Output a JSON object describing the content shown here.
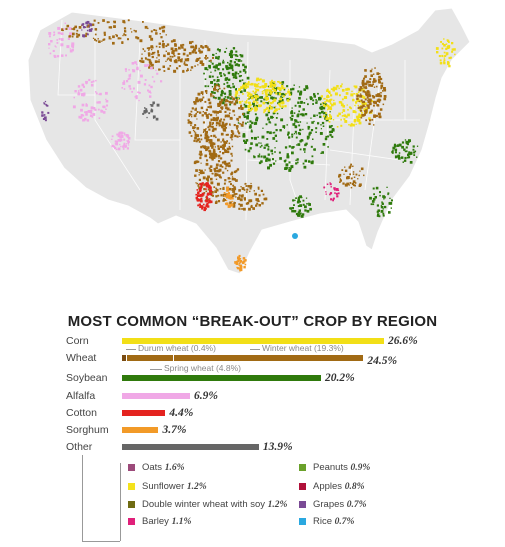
{
  "title": "MOST COMMON “BREAK-OUT” CROP BY REGION",
  "colors": {
    "corn": "#f2df17",
    "wheat": "#a16a14",
    "soybean": "#2f7a0c",
    "alfalfa": "#f0a8e6",
    "cotton": "#e4231f",
    "sorghum": "#f29a28",
    "other": "#666666",
    "map_land": "#e6e6e6",
    "map_border": "#ffffff"
  },
  "chart_data": {
    "type": "bar",
    "categories": [
      "Corn",
      "Wheat",
      "Soybean",
      "Alfalfa",
      "Cotton",
      "Sorghum",
      "Other"
    ],
    "values": [
      26.6,
      24.5,
      20.2,
      6.9,
      4.4,
      3.7,
      13.9
    ],
    "value_labels": [
      "26.6%",
      "24.5%",
      "20.2%",
      "6.9%",
      "4.4%",
      "3.7%",
      "13.9%"
    ],
    "title": "MOST COMMON “BREAK-OUT” CROP BY REGION",
    "wheat_breakdown": [
      {
        "label": "Durum wheat (0.4%)",
        "value": 0.4
      },
      {
        "label": "Spring wheat (4.8%)",
        "value": 4.8
      },
      {
        "label": "Winter wheat (19.3%)",
        "value": 19.3
      }
    ],
    "other_breakdown": [
      {
        "label": "Oats",
        "value": 1.6,
        "value_label": "1.6%",
        "color": "#9c4a7a"
      },
      {
        "label": "Sunflower",
        "value": 1.2,
        "value_label": "1.2%",
        "color": "#f4e21c"
      },
      {
        "label": "Double winter wheat with soy",
        "value": 1.2,
        "value_label": "1.2%",
        "color": "#6f6b12"
      },
      {
        "label": "Barley",
        "value": 1.1,
        "value_label": "1.1%",
        "color": "#e0207a"
      },
      {
        "label": "Peanuts",
        "value": 0.9,
        "value_label": "0.9%",
        "color": "#6aa12a"
      },
      {
        "label": "Apples",
        "value": 0.8,
        "value_label": "0.8%",
        "color": "#b0103a"
      },
      {
        "label": "Grapes",
        "value": 0.7,
        "value_label": "0.7%",
        "color": "#7a4a95"
      },
      {
        "label": "Rice",
        "value": 0.7,
        "value_label": "0.7%",
        "color": "#2aa8e0"
      }
    ]
  }
}
